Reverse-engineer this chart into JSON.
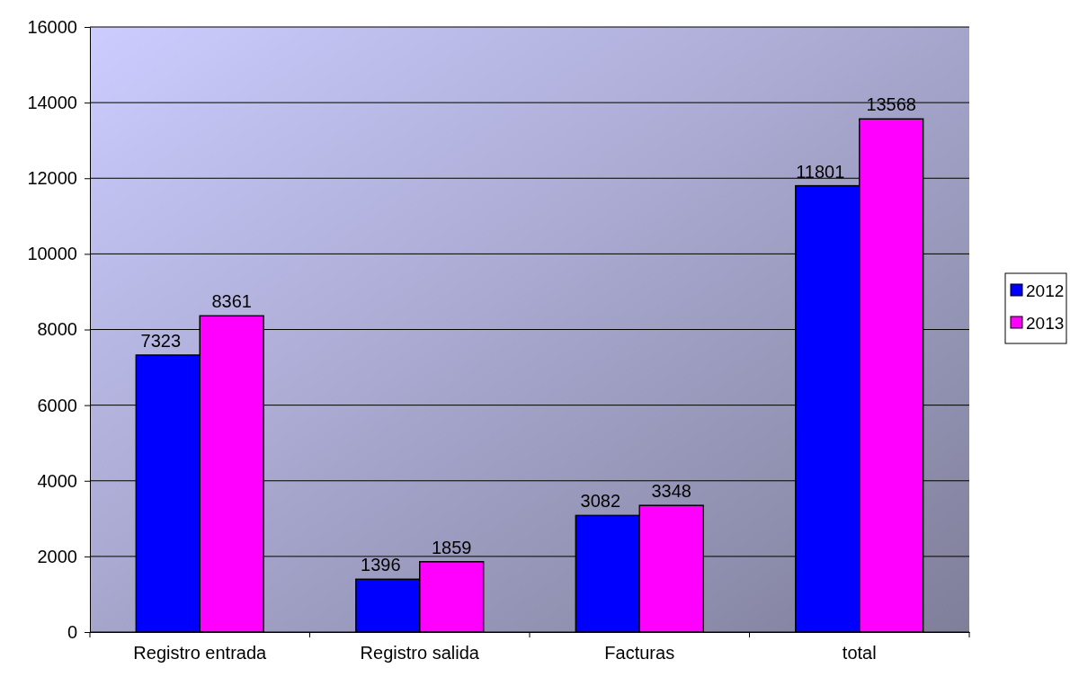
{
  "chart_data": {
    "type": "bar",
    "categories": [
      "Registro entrada",
      "Registro salida",
      "Facturas",
      "total"
    ],
    "series": [
      {
        "name": "2012",
        "color": "#0000ff",
        "values": [
          7323,
          1396,
          3082,
          11801
        ]
      },
      {
        "name": "2013",
        "color": "#ff00ff",
        "values": [
          8361,
          1859,
          3348,
          13568
        ]
      }
    ],
    "ylim": [
      0,
      16000
    ],
    "yticks": [
      0,
      2000,
      4000,
      6000,
      8000,
      10000,
      12000,
      14000,
      16000
    ],
    "grid": "y",
    "legend": "right",
    "data_labels": true
  }
}
